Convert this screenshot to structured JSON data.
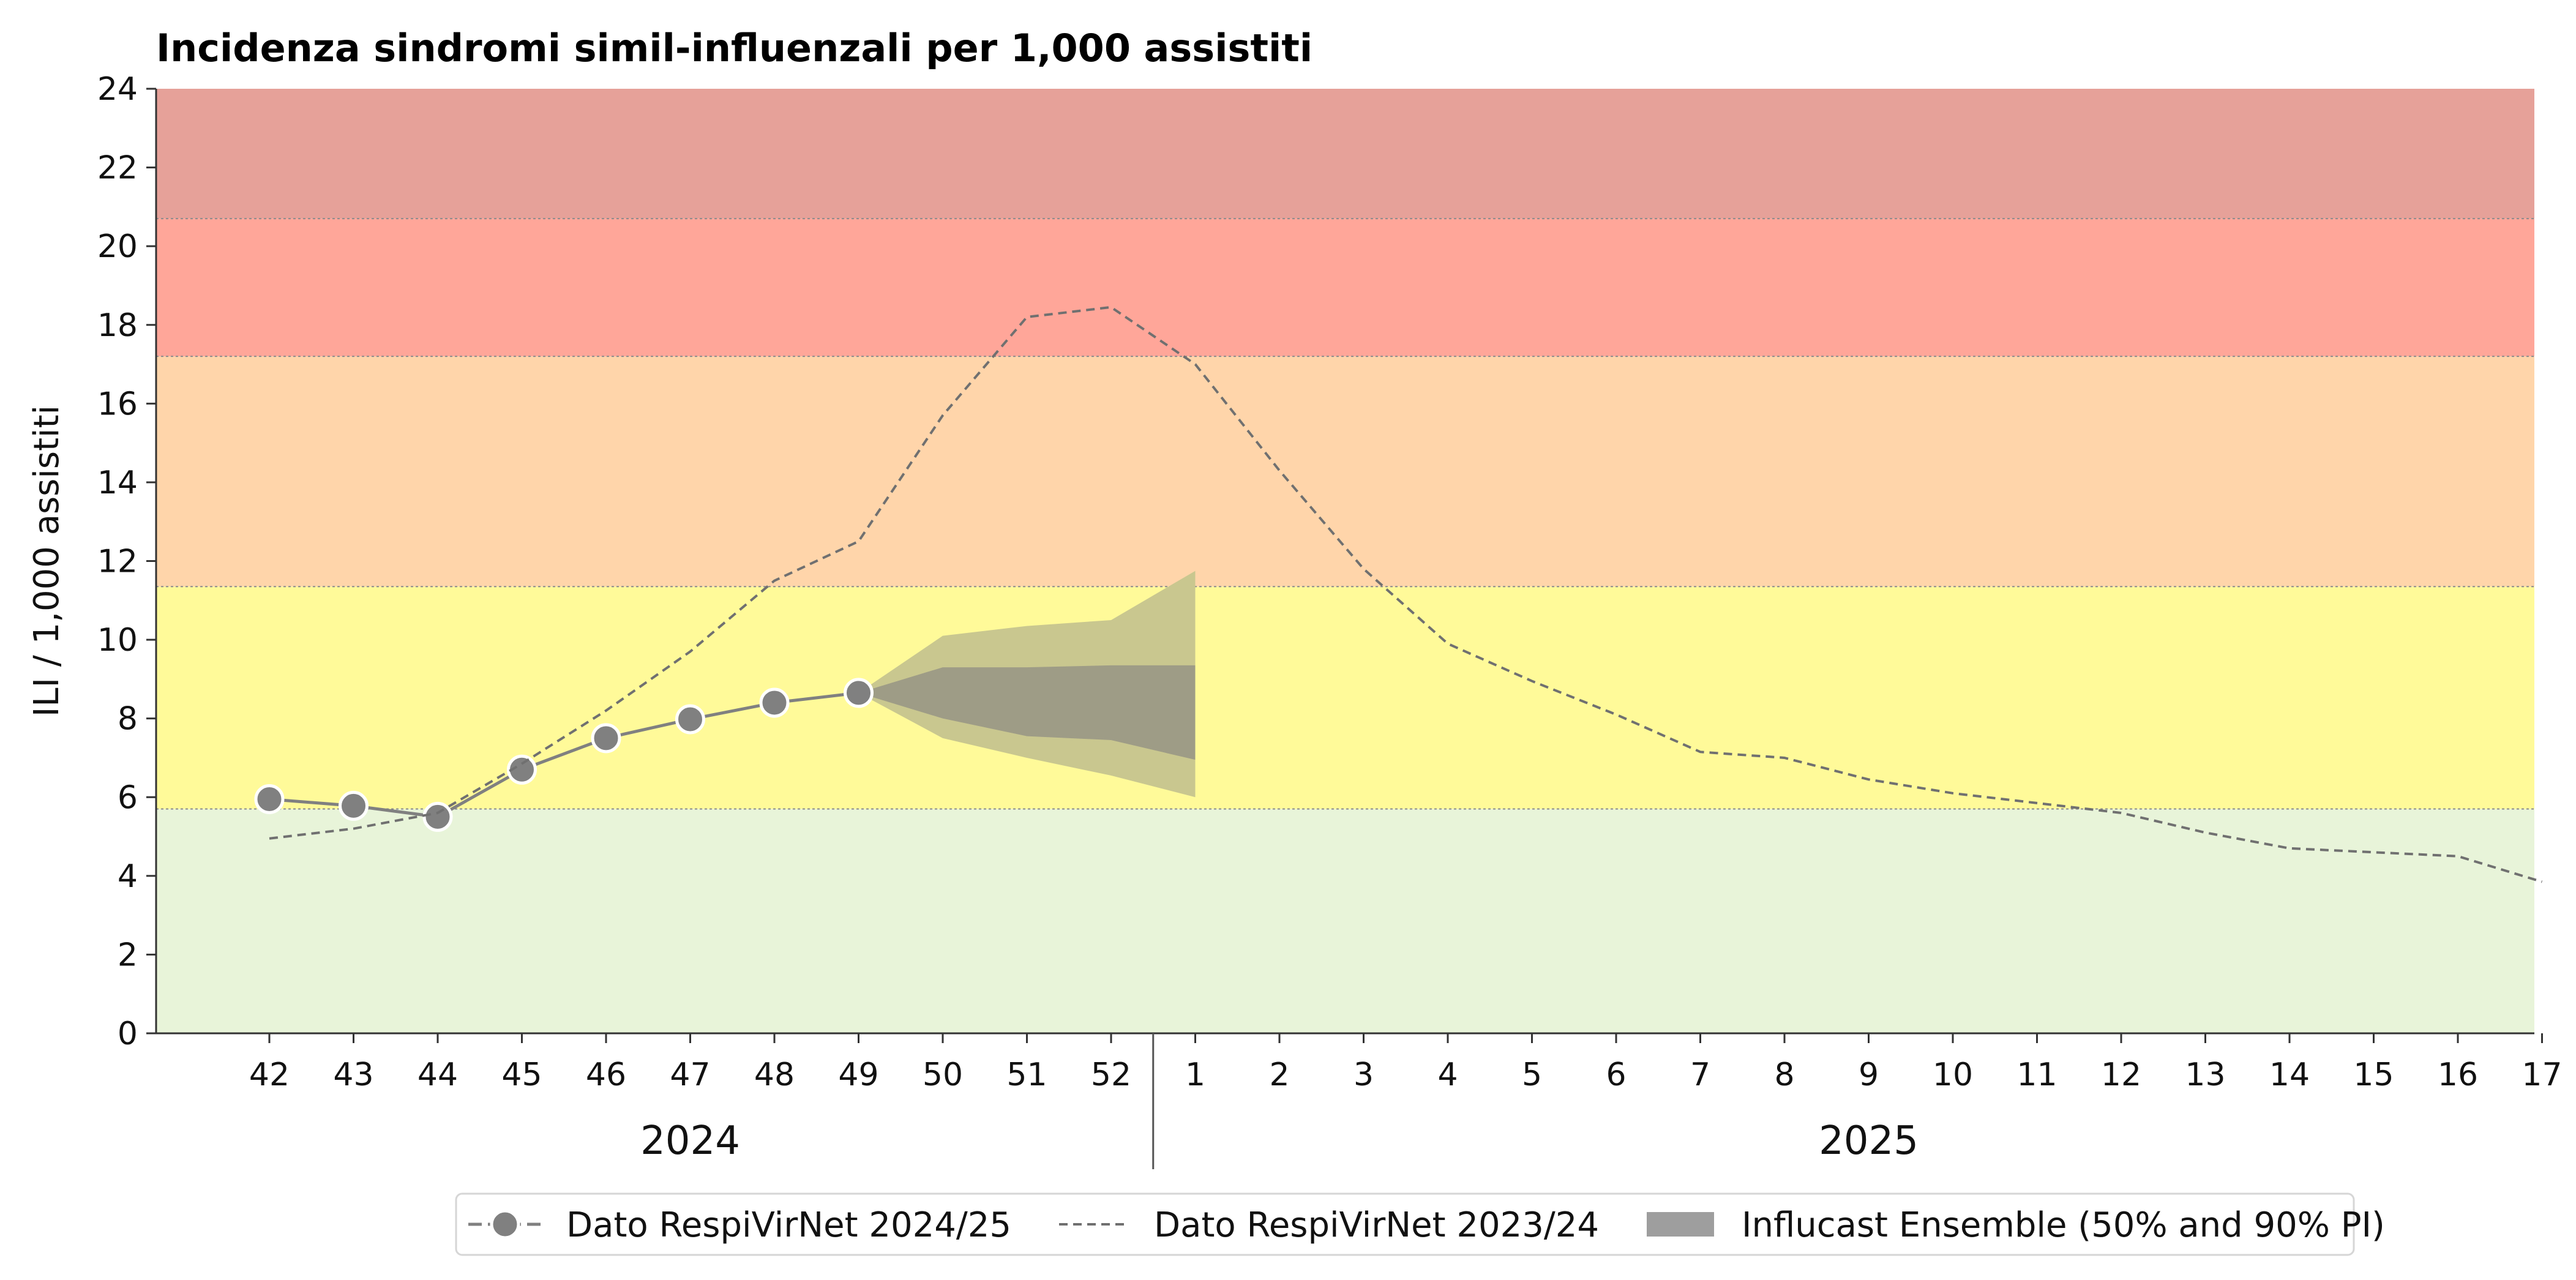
{
  "chart_data": {
    "type": "line",
    "title": "Incidenza sindromi simil-influenzali per 1,000 assistiti",
    "xlabel": "",
    "ylabel": "ILI / 1,000 assistiti",
    "ylim": [
      0,
      24
    ],
    "yticks": [
      0,
      2,
      4,
      6,
      8,
      10,
      12,
      14,
      16,
      18,
      20,
      22,
      24
    ],
    "x": [
      "42",
      "43",
      "44",
      "45",
      "46",
      "47",
      "48",
      "49",
      "50",
      "51",
      "52",
      "1",
      "2",
      "3",
      "4",
      "5",
      "6",
      "7",
      "8",
      "9",
      "10",
      "11",
      "12",
      "13",
      "14",
      "15",
      "16",
      "17"
    ],
    "year_labels": [
      {
        "label": "2024",
        "from_index": 0,
        "to_index": 10
      },
      {
        "label": "2025",
        "from_index": 11,
        "to_index": 27
      }
    ],
    "year_divider_after_index": 10,
    "grid": false,
    "intensity_bands": [
      {
        "from": 0,
        "to": 5.7,
        "color": "#e8f4d9"
      },
      {
        "from": 5.7,
        "to": 11.35,
        "color": "#fffa99"
      },
      {
        "from": 11.35,
        "to": 17.2,
        "color": "#ffd5aa"
      },
      {
        "from": 17.2,
        "to": 20.7,
        "color": "#ffa699"
      },
      {
        "from": 20.7,
        "to": 24,
        "color": "#e6a199"
      }
    ],
    "series": [
      {
        "name": "Dato RespiVirNet 2024/25",
        "style": "line-markers",
        "color": "#808080",
        "values": [
          5.95,
          5.78,
          5.5,
          6.7,
          7.5,
          7.98,
          8.4,
          8.65,
          null,
          null,
          null,
          null,
          null,
          null,
          null,
          null,
          null,
          null,
          null,
          null,
          null,
          null,
          null,
          null,
          null,
          null,
          null,
          null
        ]
      },
      {
        "name": "Dato RespiVirNet 2023/24",
        "style": "dashed",
        "color": "#707070",
        "values": [
          4.95,
          5.2,
          5.6,
          6.85,
          8.2,
          9.7,
          11.5,
          12.5,
          15.7,
          18.2,
          18.45,
          17.0,
          14.3,
          11.8,
          9.9,
          8.95,
          8.1,
          7.15,
          7.0,
          6.45,
          6.1,
          5.85,
          5.6,
          5.1,
          4.7,
          4.6,
          4.5,
          3.85
        ]
      }
    ],
    "forecast": {
      "name": "Influcast Ensemble (50% and 90% PI)",
      "x_indices": [
        7,
        8,
        9,
        10,
        11
      ],
      "pi90_upper": [
        8.65,
        10.1,
        10.35,
        10.5,
        11.75
      ],
      "pi90_lower": [
        8.65,
        7.5,
        7.0,
        6.55,
        6.0
      ],
      "pi50_upper": [
        8.65,
        9.3,
        9.3,
        9.35,
        9.35
      ],
      "pi50_lower": [
        8.65,
        8.0,
        7.55,
        7.45,
        6.95
      ],
      "pi90_color": "#c9c78f",
      "pi50_color": "#9e9c86"
    },
    "legend": {
      "placement": "bottom-center",
      "entries": [
        {
          "label": "Dato RespiVirNet 2024/25",
          "kind": "line-marker"
        },
        {
          "label": "Dato RespiVirNet 2023/24",
          "kind": "dashed"
        },
        {
          "label": "Influcast Ensemble (50% and 90% PI)",
          "kind": "patch"
        }
      ]
    }
  }
}
